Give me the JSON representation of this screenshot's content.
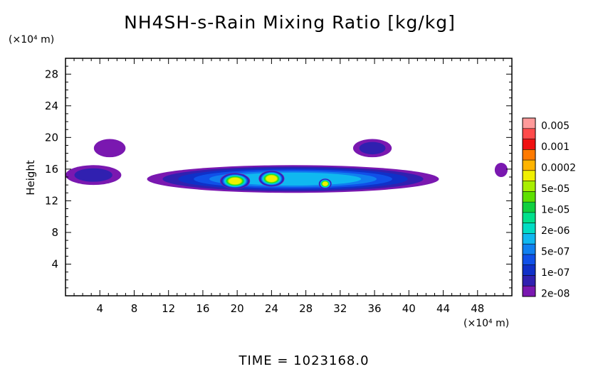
{
  "chart_data": {
    "type": "heatmap",
    "title": "NH4SH-s-Rain Mixing Ratio [kg/kg]",
    "xlabel": "",
    "ylabel": "Height",
    "x_unit": "(×10⁴ m)",
    "y_unit": "(×10⁴ m)",
    "xlim": [
      0,
      52
    ],
    "ylim": [
      0,
      30
    ],
    "x_ticks": [
      "4",
      "8",
      "12",
      "16",
      "20",
      "24",
      "28",
      "32",
      "36",
      "40",
      "44",
      "48"
    ],
    "y_ticks": [
      "4",
      "8",
      "12",
      "16",
      "20",
      "24",
      "28"
    ],
    "colorbar": {
      "labels": [
        "0.005",
        "0.001",
        "0.0002",
        "5e-05",
        "1e-05",
        "2e-06",
        "5e-07",
        "1e-07",
        "2e-08"
      ],
      "colors": [
        "#ff9a9a",
        "#ff4a4a",
        "#f01010",
        "#ff7a00",
        "#ffb400",
        "#f0f000",
        "#a8ee00",
        "#5ee000",
        "#10d040",
        "#00e08c",
        "#00dcc4",
        "#10b8f0",
        "#1080f0",
        "#1050e8",
        "#1030c8",
        "#3020b0",
        "#7a18b0"
      ]
    },
    "regions": [
      {
        "x": [
          0.0,
          6.5
        ],
        "y": [
          14.0,
          16.5
        ],
        "level": "1e-07"
      },
      {
        "x": [
          3.3,
          7.0
        ],
        "y": [
          17.5,
          19.8
        ],
        "level": "2e-08"
      },
      {
        "x": [
          9.5,
          43.5
        ],
        "y": [
          13.0,
          16.5
        ],
        "level": "2e-06"
      },
      {
        "x": [
          18.0,
          21.5
        ],
        "y": [
          13.5,
          15.5
        ],
        "level": "0.0002"
      },
      {
        "x": [
          22.5,
          25.5
        ],
        "y": [
          13.8,
          15.8
        ],
        "level": "0.0002"
      },
      {
        "x": [
          29.5,
          31.0
        ],
        "y": [
          13.5,
          14.8
        ],
        "level": "0.0002"
      },
      {
        "x": [
          33.5,
          38.0
        ],
        "y": [
          17.5,
          19.8
        ],
        "level": "1e-07"
      },
      {
        "x": [
          50.0,
          51.5
        ],
        "y": [
          15.0,
          16.8
        ],
        "level": "2e-08"
      }
    ],
    "grid": false,
    "legend": "colorbar-right"
  },
  "footer": {
    "time_text": "TIME  =  1023168.0"
  }
}
